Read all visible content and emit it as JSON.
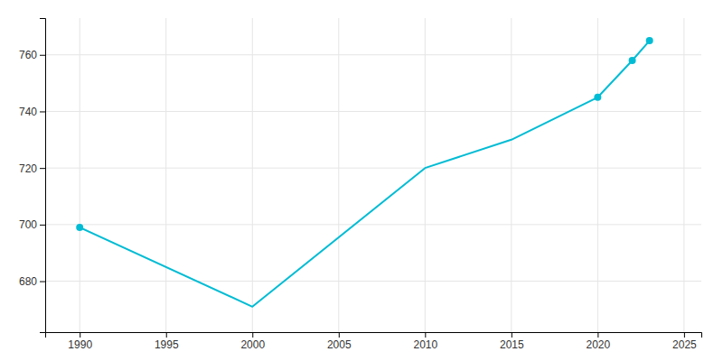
{
  "chart_data": {
    "type": "line",
    "x": [
      1990,
      2000,
      2010,
      2015,
      2020,
      2022,
      2023
    ],
    "series": [
      {
        "color": "#00BCD4",
        "values": [
          699,
          671,
          720,
          730,
          745,
          758,
          765
        ]
      },
      {
        "color": "#00BCD4",
        "values": [
          699,
          null,
          null,
          null,
          745,
          758,
          765
        ],
        "marker": "circle",
        "line_style": "none"
      }
    ],
    "xlim": [
      1988,
      2026
    ],
    "xticks": [
      1990,
      1995,
      2000,
      2005,
      2010,
      2015,
      2020,
      2025
    ],
    "ylim": [
      662,
      773
    ],
    "yticks": [
      680,
      700,
      720,
      740,
      760
    ],
    "grid": true
  }
}
